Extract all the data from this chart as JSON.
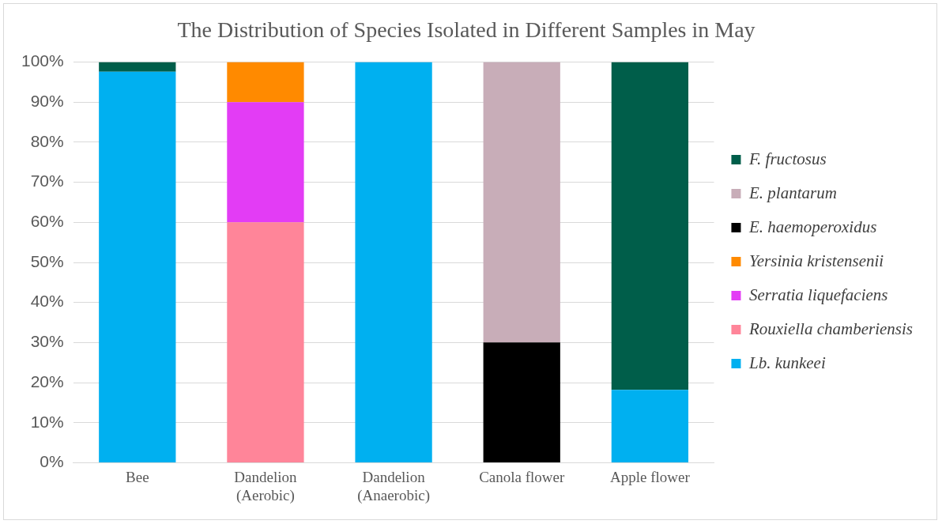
{
  "chart_data": {
    "type": "bar",
    "title": "The Distribution of Species Isolated in Different Samples in May",
    "categories": [
      "Bee",
      "Dandelion\n(Aerobic)",
      "Dandelion\n(Anaerobic)",
      "Canola flower",
      "Apple flower"
    ],
    "stacked": true,
    "ylim": [
      0,
      100
    ],
    "yticks": [
      {
        "value": 0,
        "label": "0%"
      },
      {
        "value": 10,
        "label": "10%"
      },
      {
        "value": 20,
        "label": "20%"
      },
      {
        "value": 30,
        "label": "30%"
      },
      {
        "value": 40,
        "label": "40%"
      },
      {
        "value": 50,
        "label": "50%"
      },
      {
        "value": 60,
        "label": "60%"
      },
      {
        "value": 70,
        "label": "70%"
      },
      {
        "value": 80,
        "label": "80%"
      },
      {
        "value": 90,
        "label": "90%"
      },
      {
        "value": 100,
        "label": "100%"
      }
    ],
    "grid": "y",
    "legend": "right",
    "series": [
      {
        "name": "Lb. kunkeei",
        "color": "#00b0f0",
        "values": [
          97.6,
          0,
          100,
          0,
          18.2
        ]
      },
      {
        "name": "Rouxiella chamberiensis",
        "color": "#ff8599",
        "values": [
          0,
          60,
          0,
          0,
          0
        ]
      },
      {
        "name": "Serratia liquefaciens",
        "color": "#e33cf5",
        "values": [
          0,
          30,
          0,
          0,
          0
        ]
      },
      {
        "name": "Yersinia kristensenii",
        "color": "#ff8a00",
        "values": [
          0,
          10,
          0,
          0,
          0
        ]
      },
      {
        "name": "E. haemoperoxidus",
        "color": "#000000",
        "values": [
          0,
          0,
          0,
          30,
          0
        ]
      },
      {
        "name": "E. plantarum",
        "color": "#c8adb8",
        "values": [
          0,
          0,
          0,
          70,
          0
        ]
      },
      {
        "name": "F. fructosus",
        "color": "#005e4a",
        "values": [
          2.4,
          0,
          0,
          0,
          81.8
        ]
      }
    ]
  }
}
